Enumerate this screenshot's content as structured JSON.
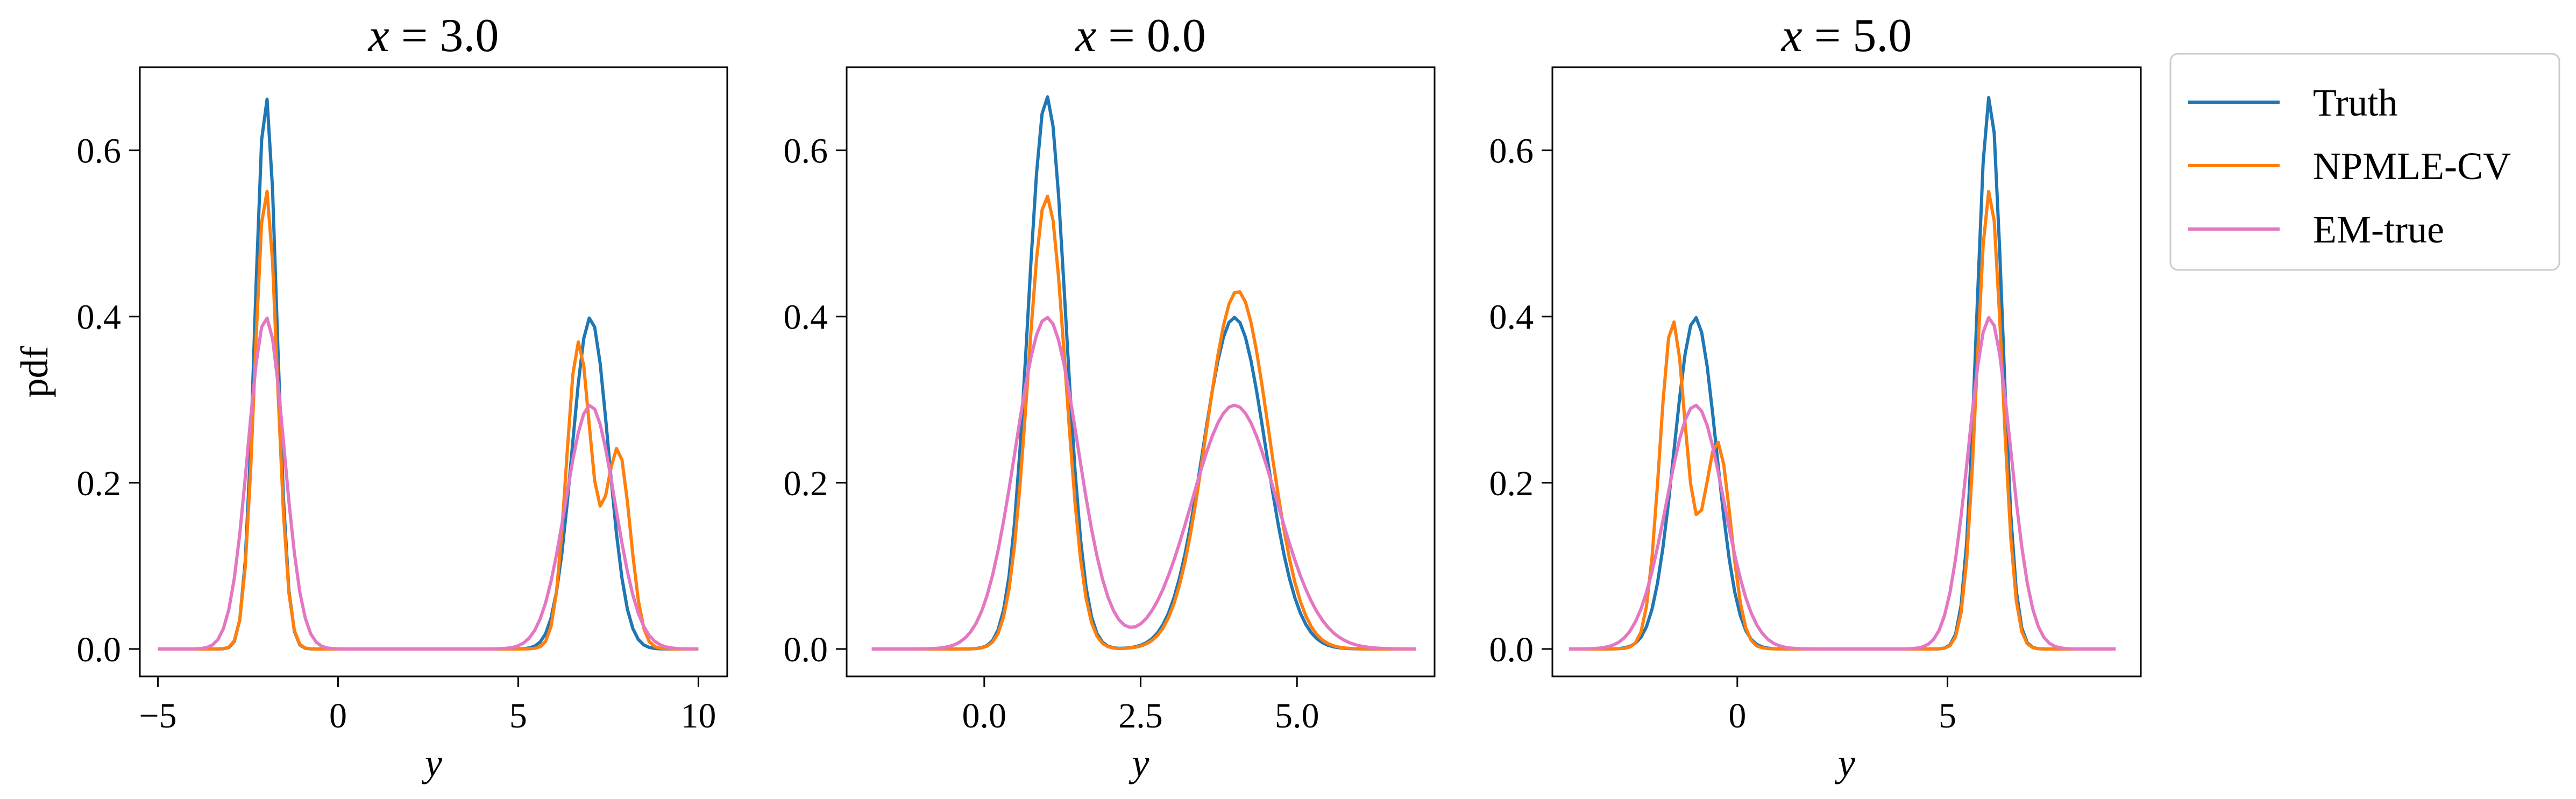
{
  "chart_data": [
    {
      "type": "line",
      "title": "x =  3.0",
      "title_var": "x",
      "title_eq": "=",
      "title_val": "3.0",
      "xlabel": "y",
      "ylabel": "pdf",
      "xlim": [
        -5.5,
        10.8
      ],
      "ylim": [
        -0.033,
        0.7
      ],
      "xticks": [
        -5,
        0,
        5,
        10
      ],
      "xtick_labels": [
        "−5",
        "0",
        "5",
        "10"
      ],
      "yticks": [
        0.0,
        0.2,
        0.4,
        0.6
      ],
      "ytick_labels": [
        "0.0",
        "0.2",
        "0.4",
        "0.6"
      ],
      "grid": false,
      "series": [
        {
          "name": "Truth",
          "color": "#1f77b4",
          "components": [
            {
              "mu": -2.0,
              "sigma": 0.3,
              "weight": 0.5
            },
            {
              "mu": 7.0,
              "sigma": 0.5,
              "weight": 0.5
            }
          ]
        },
        {
          "name": "NPMLE-CV",
          "color": "#ff7f0e",
          "components": [
            {
              "mu": -2.0,
              "sigma": 0.31,
              "weight": 0.43
            },
            {
              "mu": 6.65,
              "sigma": 0.32,
              "weight": 0.26
            },
            {
              "mu": 7.8,
              "sigma": 0.32,
              "weight": 0.16
            },
            {
              "mu": 7.2,
              "sigma": 0.55,
              "weight": 0.1
            }
          ]
        },
        {
          "name": "EM-true",
          "color": "#e377c2",
          "components": [
            {
              "mu": -2.0,
              "sigma": 0.5,
              "weight": 0.5
            },
            {
              "mu": 7.0,
              "sigma": 0.68,
              "weight": 0.5
            }
          ]
        }
      ],
      "x_range": [
        -5,
        10
      ]
    },
    {
      "type": "line",
      "title": "x = 0.0",
      "title_var": "x",
      "title_eq": "=",
      "title_val": "0.0",
      "xlabel": "y",
      "ylabel": "",
      "xlim": [
        -2.2,
        7.2
      ],
      "ylim": [
        -0.033,
        0.7
      ],
      "xticks": [
        0.0,
        2.5,
        5.0
      ],
      "xtick_labels": [
        "0.0",
        "2.5",
        "5.0"
      ],
      "yticks": [
        0.0,
        0.2,
        0.4,
        0.6
      ],
      "ytick_labels": [
        "0.0",
        "0.2",
        "0.4",
        "0.6"
      ],
      "grid": false,
      "series": [
        {
          "name": "Truth",
          "color": "#1f77b4",
          "components": [
            {
              "mu": 1.0,
              "sigma": 0.3,
              "weight": 0.5
            },
            {
              "mu": 4.0,
              "sigma": 0.5,
              "weight": 0.5
            }
          ]
        },
        {
          "name": "NPMLE-CV",
          "color": "#ff7f0e",
          "components": [
            {
              "mu": 1.0,
              "sigma": 0.3,
              "weight": 0.41
            },
            {
              "mu": 4.05,
              "sigma": 0.5,
              "weight": 0.54
            }
          ]
        },
        {
          "name": "EM-true",
          "color": "#e377c2",
          "components": [
            {
              "mu": 1.0,
              "sigma": 0.5,
              "weight": 0.5
            },
            {
              "mu": 4.0,
              "sigma": 0.68,
              "weight": 0.5
            }
          ]
        }
      ],
      "x_range": [
        -1.8,
        6.9
      ]
    },
    {
      "type": "line",
      "title": "x = 5.0",
      "title_var": "x",
      "title_eq": "=",
      "title_val": "5.0",
      "xlabel": "y",
      "ylabel": "",
      "xlim": [
        -4.4,
        9.6
      ],
      "ylim": [
        -0.033,
        0.7
      ],
      "xticks": [
        0,
        5
      ],
      "xtick_labels": [
        "0",
        "5"
      ],
      "yticks": [
        0.0,
        0.2,
        0.4,
        0.6
      ],
      "ytick_labels": [
        "0.0",
        "0.2",
        "0.4",
        "0.6"
      ],
      "grid": false,
      "series": [
        {
          "name": "Truth",
          "color": "#1f77b4",
          "components": [
            {
              "mu": -1.0,
              "sigma": 0.5,
              "weight": 0.5
            },
            {
              "mu": 6.0,
              "sigma": 0.3,
              "weight": 0.5
            }
          ]
        },
        {
          "name": "NPMLE-CV",
          "color": "#ff7f0e",
          "components": [
            {
              "mu": -1.55,
              "sigma": 0.3,
              "weight": 0.27
            },
            {
              "mu": -0.45,
              "sigma": 0.3,
              "weight": 0.16
            },
            {
              "mu": -1.0,
              "sigma": 0.55,
              "weight": 0.08
            },
            {
              "mu": 6.0,
              "sigma": 0.3,
              "weight": 0.415
            }
          ]
        },
        {
          "name": "EM-true",
          "color": "#e377c2",
          "components": [
            {
              "mu": -1.0,
              "sigma": 0.68,
              "weight": 0.5
            },
            {
              "mu": 6.0,
              "sigma": 0.5,
              "weight": 0.5
            }
          ]
        }
      ],
      "x_range": [
        -4,
        9
      ]
    }
  ],
  "legend": {
    "placement": "outside-right",
    "entries": [
      {
        "label": "Truth",
        "color": "#1f77b4"
      },
      {
        "label": "NPMLE-CV",
        "color": "#ff7f0e"
      },
      {
        "label": "EM-true",
        "color": "#e377c2"
      }
    ]
  }
}
